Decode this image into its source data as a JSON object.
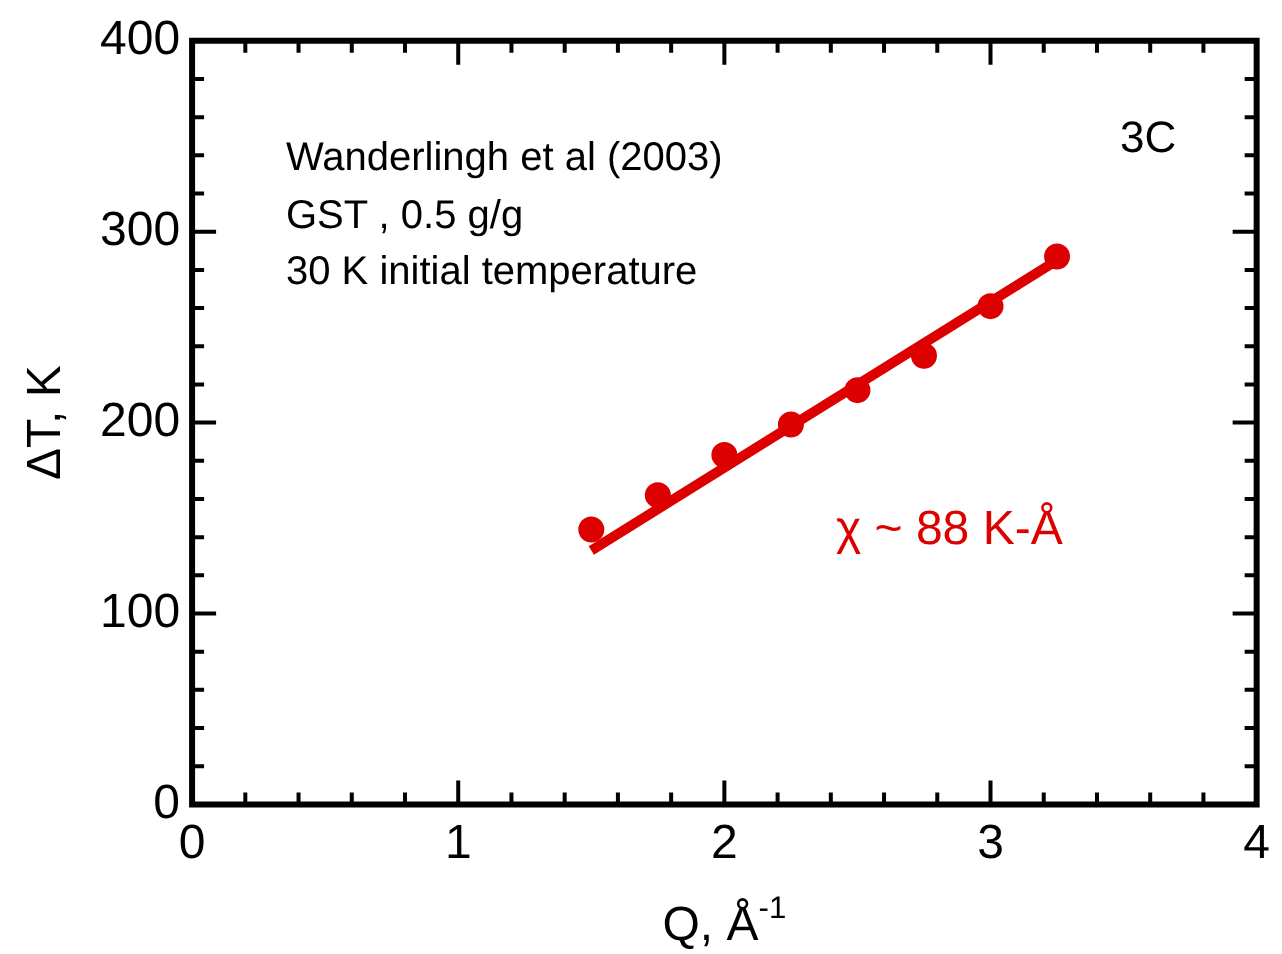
{
  "chart_data": {
    "type": "scatter",
    "xlabel": "Q, Å$^{-1}$",
    "ylabel": "ΔT, K",
    "annotations": [
      "Wanderlingh et al (2003)",
      "GST , 0.5 g/g",
      "30 K initial temperature",
      "3C",
      "χ ~ 88 K-Å"
    ],
    "series": [
      {
        "marker": "circle",
        "color": "#dd0000",
        "x": [
          1.5,
          1.75,
          2.0,
          2.25,
          2.5,
          2.75,
          3.0,
          3.25
        ],
        "values": [
          144,
          162,
          183,
          199,
          217,
          235,
          261,
          287
        ]
      },
      {
        "type": "line",
        "marker": "none",
        "color": "#dd0000",
        "x": [
          1.5,
          3.25
        ],
        "values": [
          133,
          285
        ]
      }
    ],
    "line_style": "solid",
    "grid": false,
    "legend": false,
    "xlim": [
      0,
      4
    ],
    "ylim": [
      0,
      400
    ],
    "xticks": [
      0,
      {
        "value": 0.2,
        "label": null
      },
      {
        "value": 0.4,
        "label": null
      },
      {
        "value": 0.6,
        "label": null
      },
      {
        "value": 0.8,
        "label": null
      },
      1,
      {
        "value": 1.2,
        "label": null
      },
      {
        "value": 1.4,
        "label": null
      },
      {
        "value": 1.6,
        "label": null
      },
      {
        "value": 1.8,
        "label": null
      },
      2,
      {
        "value": 2.2,
        "label": null
      },
      {
        "value": 2.4,
        "label": null
      },
      {
        "value": 2.6,
        "label": null
      },
      {
        "value": 2.8,
        "label": null
      },
      3,
      {
        "value": 3.2,
        "label": null
      },
      {
        "value": 3.4,
        "label": null
      },
      {
        "value": 3.6,
        "label": null
      },
      {
        "value": 3.8,
        "label": null
      },
      4
    ],
    "yticks": [
      0,
      {
        "value": 20,
        "label": null
      },
      {
        "value": 40,
        "label": null
      },
      {
        "value": 60,
        "label": null
      },
      {
        "value": 80,
        "label": null
      },
      100,
      {
        "value": 120,
        "label": null
      },
      {
        "value": 140,
        "label": null
      },
      {
        "value": 160,
        "label": null
      },
      {
        "value": 180,
        "label": null
      },
      200,
      {
        "value": 220,
        "label": null
      },
      {
        "value": 240,
        "label": null
      },
      {
        "value": 260,
        "label": null
      },
      {
        "value": 280,
        "label": null
      },
      300,
      {
        "value": 320,
        "label": null
      },
      {
        "value": 340,
        "label": null
      },
      {
        "value": 360,
        "label": null
      },
      {
        "value": 380,
        "label": null
      },
      400
    ]
  }
}
